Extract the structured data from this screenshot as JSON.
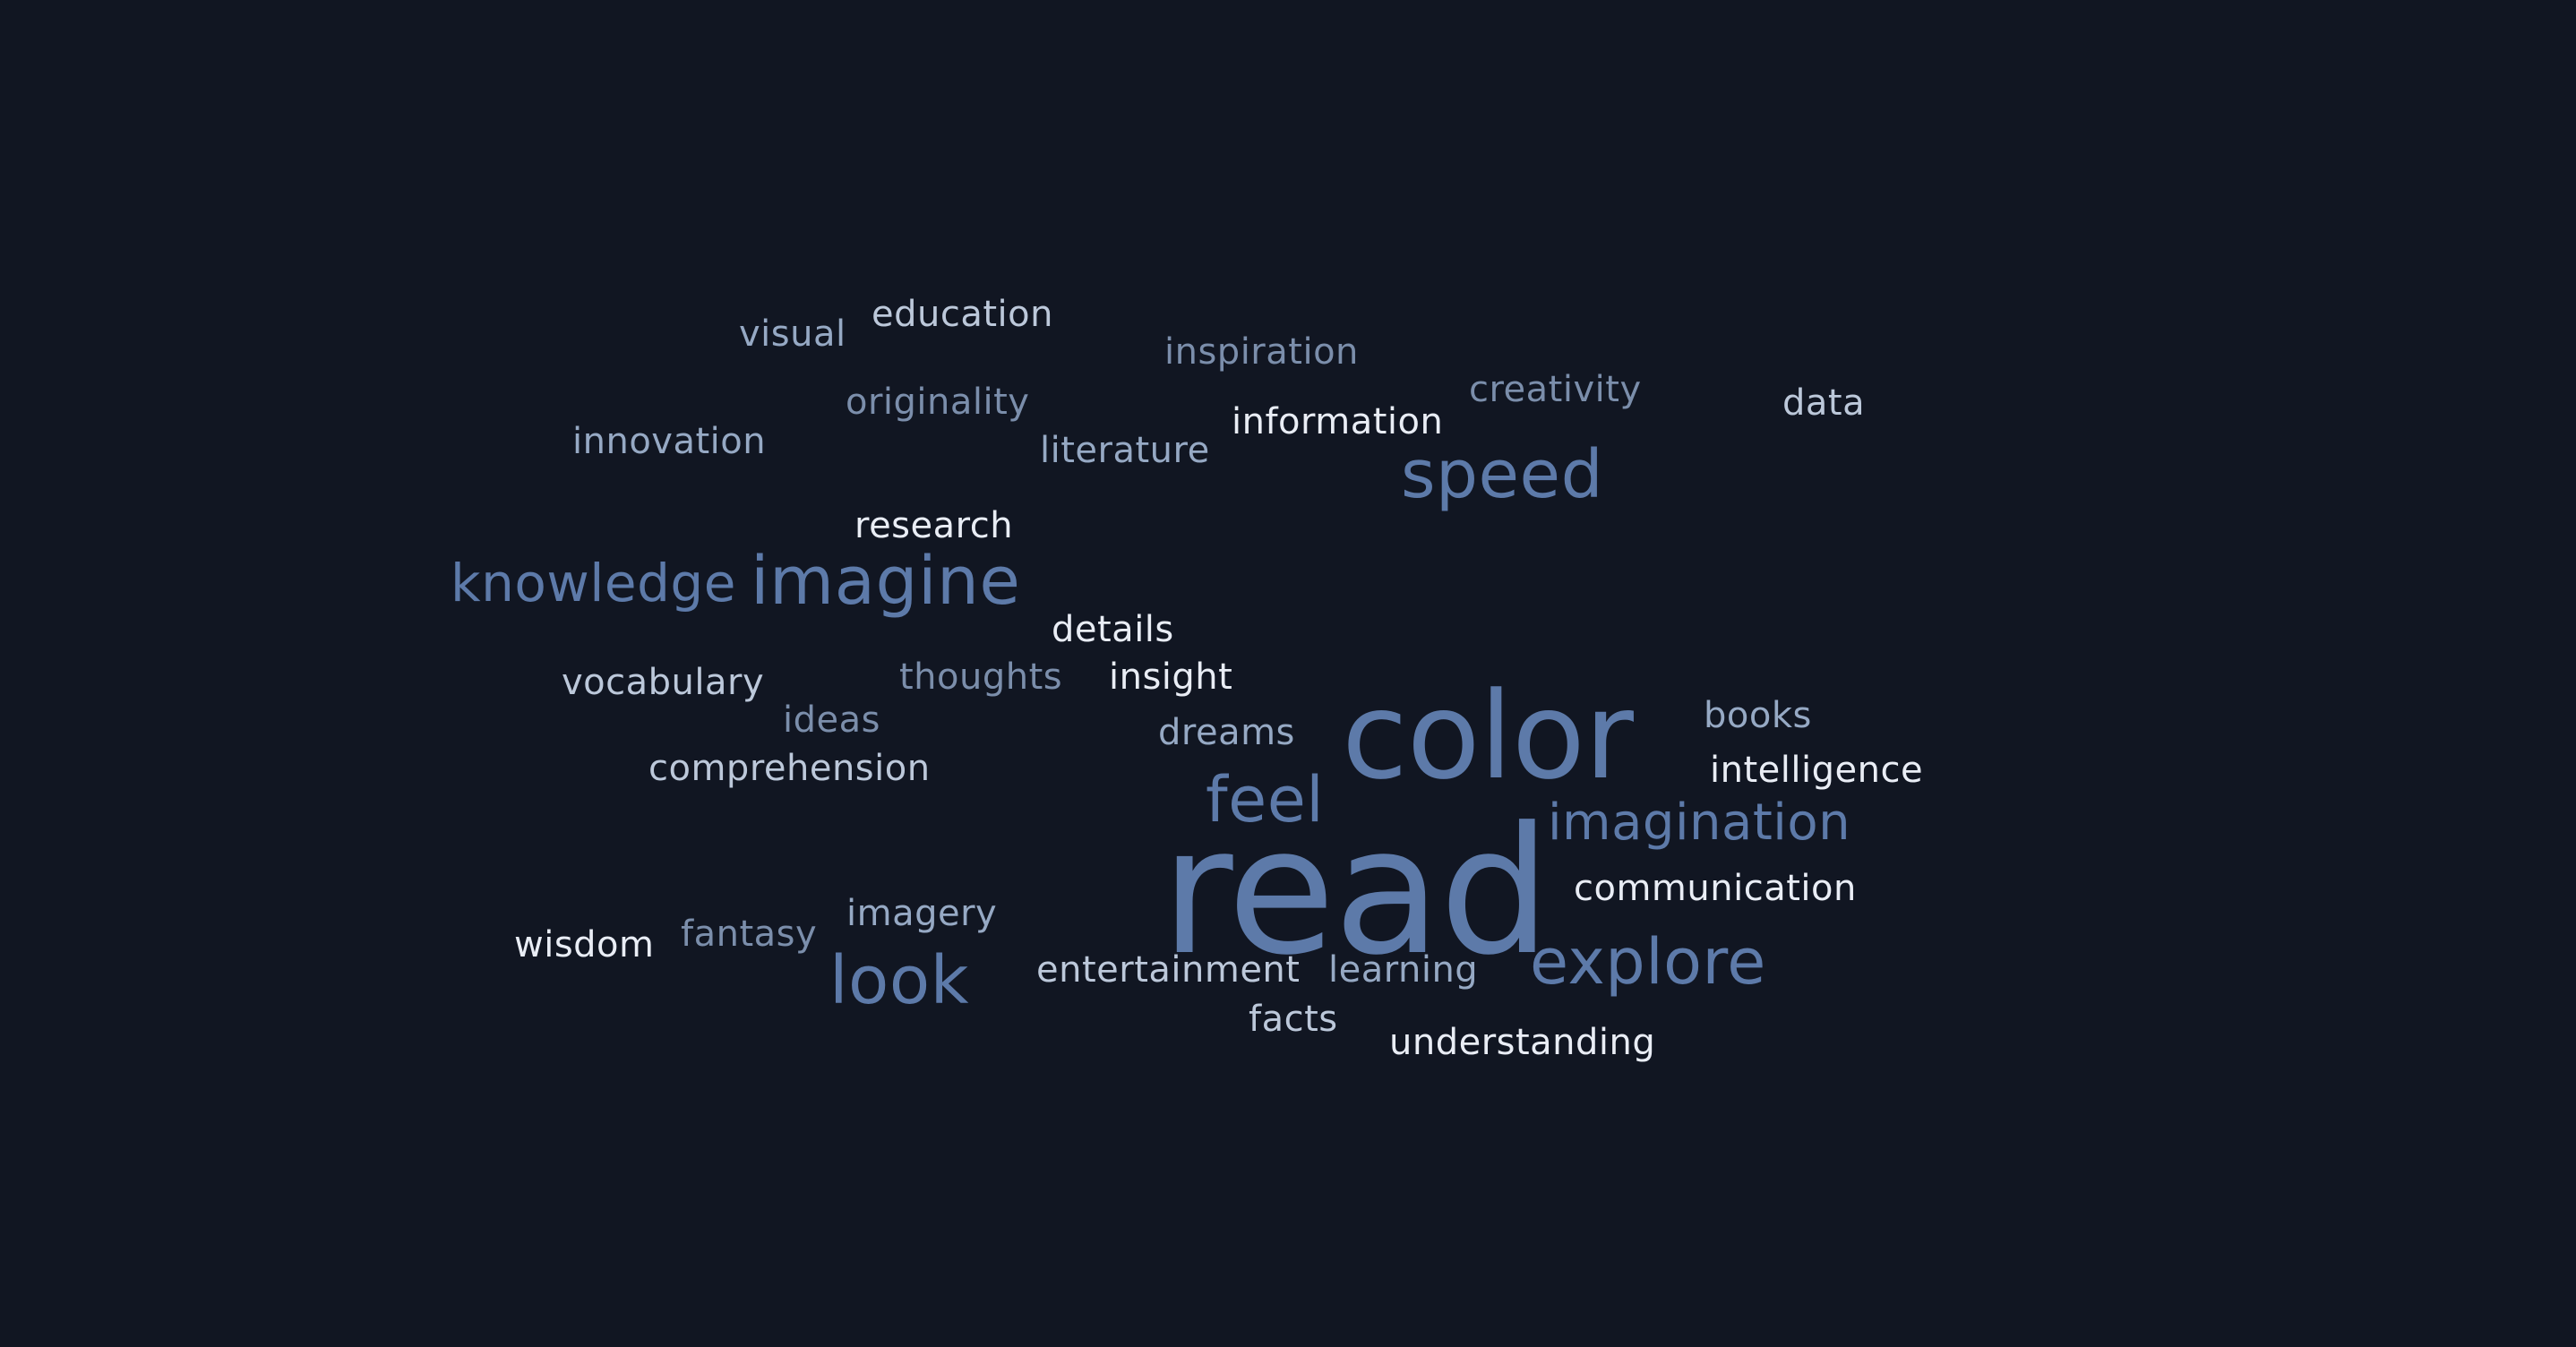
{
  "words": [
    {
      "id": "read",
      "text": "read"
    },
    {
      "id": "color",
      "text": "color"
    },
    {
      "id": "imagine",
      "text": "imagine"
    },
    {
      "id": "knowledge",
      "text": "knowledge"
    },
    {
      "id": "speed",
      "text": "speed"
    },
    {
      "id": "explore",
      "text": "explore"
    },
    {
      "id": "imagination",
      "text": "imagination"
    },
    {
      "id": "feel",
      "text": "feel"
    },
    {
      "id": "look",
      "text": "look"
    },
    {
      "id": "education",
      "text": "education"
    },
    {
      "id": "visual",
      "text": "visual"
    },
    {
      "id": "inspiration",
      "text": "inspiration"
    },
    {
      "id": "originality",
      "text": "originality"
    },
    {
      "id": "creativity",
      "text": "creativity"
    },
    {
      "id": "data",
      "text": "data"
    },
    {
      "id": "innovation",
      "text": "innovation"
    },
    {
      "id": "literature",
      "text": "literature"
    },
    {
      "id": "information",
      "text": "information"
    },
    {
      "id": "research",
      "text": "research"
    },
    {
      "id": "details",
      "text": "details"
    },
    {
      "id": "vocabulary",
      "text": "vocabulary"
    },
    {
      "id": "thoughts",
      "text": "thoughts"
    },
    {
      "id": "insight",
      "text": "insight"
    },
    {
      "id": "ideas",
      "text": "ideas"
    },
    {
      "id": "books",
      "text": "books"
    },
    {
      "id": "dreams",
      "text": "dreams"
    },
    {
      "id": "comprehension",
      "text": "comprehension"
    },
    {
      "id": "intelligence",
      "text": "intelligence"
    },
    {
      "id": "communication",
      "text": "communication"
    },
    {
      "id": "wisdom",
      "text": "wisdom"
    },
    {
      "id": "fantasy",
      "text": "fantasy"
    },
    {
      "id": "imagery",
      "text": "imagery"
    },
    {
      "id": "entertainment",
      "text": "entertainment"
    },
    {
      "id": "learning",
      "text": "learning"
    },
    {
      "id": "facts",
      "text": "facts"
    },
    {
      "id": "understanding",
      "text": "understanding"
    }
  ],
  "colors": {
    "background": "#111622",
    "white": "#e9edf5",
    "light": "#bcc8da",
    "mid": "#96a9c4",
    "gray": "#7b8eab",
    "blue": "#5d7aa9"
  }
}
